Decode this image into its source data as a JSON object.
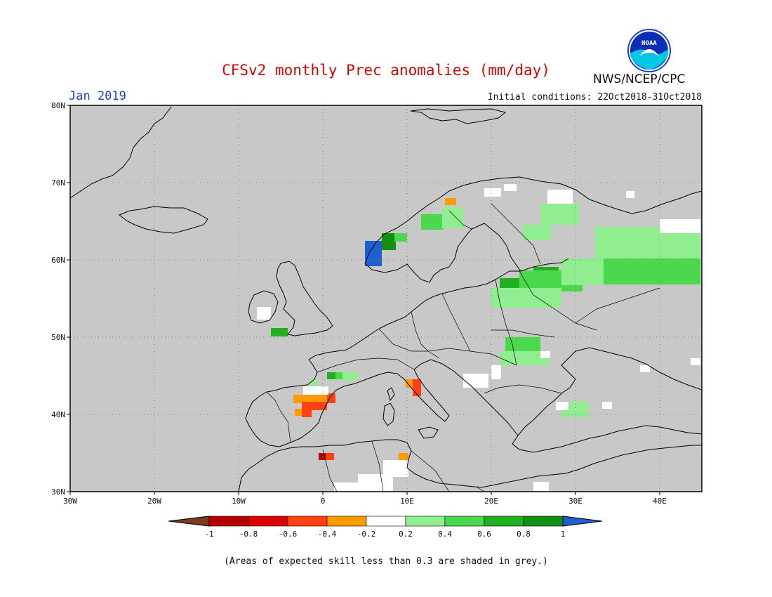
{
  "header": {
    "title": "CFSv2 monthly Prec anomalies (mm/day)",
    "month": "Jan 2019",
    "agency": "NWS/NCEP/CPC",
    "initial_conditions": "Initial conditions: 22Oct2018-31Oct2018",
    "logo_text": "NOAA"
  },
  "map": {
    "lat_ticks": [
      "80N",
      "70N",
      "60N",
      "50N",
      "40N",
      "30N"
    ],
    "lon_ticks": [
      "30W",
      "20W",
      "10W",
      "0",
      "10E",
      "20E",
      "30E",
      "40E"
    ],
    "colors": {
      "ocean_land": "#c8c8c8",
      "coast": "#000000",
      "grid": "#888888"
    }
  },
  "legend": {
    "labels": [
      "-1",
      "-0.8",
      "-0.6",
      "-0.4",
      "-0.2",
      "0.2",
      "0.4",
      "0.6",
      "0.8",
      "1"
    ],
    "colors": [
      "#7a3d20",
      "#b40000",
      "#dd0000",
      "#ff4010",
      "#ff9a00",
      "#ffffff",
      "#90ee90",
      "#4cd84c",
      "#22b022",
      "#138f13",
      "#1e60d0"
    ]
  },
  "footnote": "(Areas of expected skill less than 0.3 are shaded in grey.)"
}
